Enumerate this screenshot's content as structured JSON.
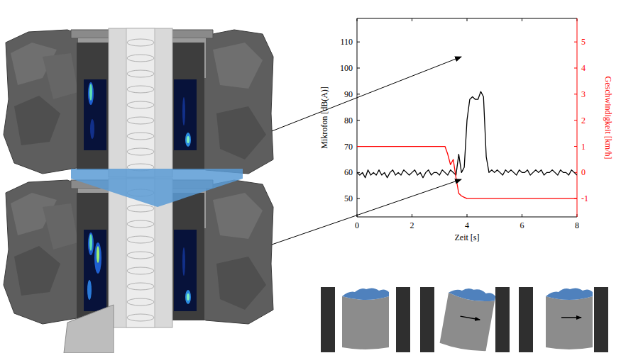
{
  "chart_data": {
    "type": "line",
    "x_label": "Zeit [s]",
    "y_label": "Mikrofon [dB(A)]",
    "y2_label": "Geschwindigkeit [km/h]",
    "x": [
      0.0,
      0.1,
      0.2,
      0.3,
      0.4,
      0.5,
      0.6,
      0.7,
      0.8,
      0.9,
      1.0,
      1.1,
      1.2,
      1.3,
      1.4,
      1.5,
      1.6,
      1.7,
      1.8,
      1.9,
      2.0,
      2.1,
      2.2,
      2.3,
      2.4,
      2.5,
      2.6,
      2.7,
      2.8,
      2.9,
      3.0,
      3.1,
      3.2,
      3.3,
      3.4,
      3.5,
      3.6,
      3.7,
      3.8,
      3.9,
      4.0,
      4.1,
      4.2,
      4.3,
      4.4,
      4.5,
      4.6,
      4.7,
      4.8,
      4.9,
      5.0,
      5.1,
      5.2,
      5.3,
      5.4,
      5.5,
      5.6,
      5.7,
      5.8,
      5.9,
      6.0,
      6.1,
      6.2,
      6.3,
      6.4,
      6.5,
      6.6,
      6.7,
      6.8,
      6.9,
      7.0,
      7.1,
      7.2,
      7.3,
      7.4,
      7.5,
      7.6,
      7.7,
      7.8,
      7.9,
      8.0
    ],
    "series": [
      {
        "color": "#000000",
        "values": [
          60,
          59,
          60,
          58,
          61,
          59,
          60,
          59,
          61,
          59,
          60,
          58,
          60,
          61,
          59,
          60,
          59,
          61,
          60,
          59,
          60,
          61,
          59,
          60,
          58,
          60,
          61,
          59,
          60,
          60,
          59,
          61,
          60,
          59,
          61,
          60,
          59,
          67,
          60,
          62,
          80,
          88,
          89,
          88,
          88,
          91,
          89,
          66,
          60,
          61,
          60,
          61,
          60,
          59,
          61,
          60,
          61,
          60,
          59,
          61,
          60,
          60,
          61,
          59,
          60,
          61,
          60,
          61,
          59,
          60,
          60,
          61,
          60,
          59,
          61,
          60,
          60,
          59,
          61,
          60,
          59
        ]
      },
      {
        "color": "#ff0000",
        "axis": "y2",
        "values": [
          1,
          1,
          1,
          1,
          1,
          1,
          1,
          1,
          1,
          1,
          1,
          1,
          1,
          1,
          1,
          1,
          1,
          1,
          1,
          1,
          1,
          1,
          1,
          1,
          1,
          1,
          1,
          1,
          1,
          1,
          1,
          1,
          1,
          0.7,
          0.3,
          0.5,
          -0.2,
          -0.8,
          -0.9,
          -0.95,
          -1,
          -1,
          -1,
          -1,
          -1,
          -1,
          -1,
          -1,
          -1,
          -1,
          -1,
          -1,
          -1,
          -1,
          -1,
          -1,
          -1,
          -1,
          -1,
          -1,
          -1,
          -1,
          -1,
          -1,
          -1,
          -1,
          -1,
          -1,
          -1,
          -1,
          -1,
          -1,
          -1,
          -1,
          -1,
          -1,
          -1,
          -1,
          -1,
          -1,
          -1
        ]
      }
    ],
    "xlim": [
      0,
      8
    ],
    "xticks": [
      0,
      2,
      4,
      6,
      8
    ],
    "ylim": [
      43,
      119
    ],
    "yticks": [
      50,
      60,
      70,
      80,
      90,
      100,
      110
    ],
    "y2lim": [
      -1.7,
      5.9
    ],
    "y2ticks": [
      -1,
      0,
      1,
      2,
      3,
      4,
      5
    ],
    "grid": false
  }
}
